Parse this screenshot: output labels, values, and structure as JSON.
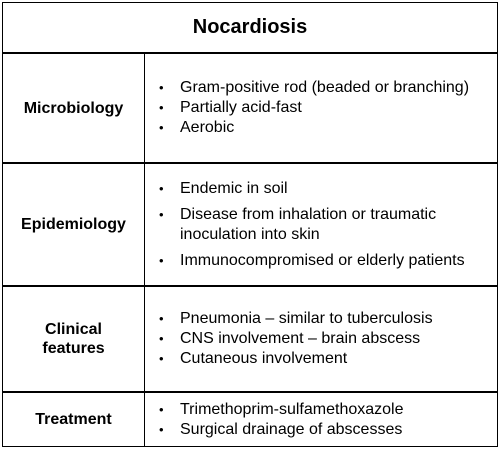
{
  "title": "Nocardiosis",
  "rows": [
    {
      "label": "Microbiology",
      "items": [
        "Gram-positive rod (beaded or branching)",
        "Partially acid-fast",
        "Aerobic"
      ]
    },
    {
      "label": "Epidemiology",
      "items": [
        "Endemic in soil",
        "Disease from inhalation or traumatic inoculation into skin",
        "Immunocompromised or elderly patients"
      ]
    },
    {
      "label": "Clinical features",
      "items": [
        "Pneumonia – similar to tuberculosis",
        "CNS involvement – brain abscess",
        "Cutaneous involvement"
      ]
    },
    {
      "label": "Treatment",
      "items": [
        "Trimethoprim-sulfamethoxazole",
        "Surgical drainage of abscesses"
      ]
    }
  ],
  "bullet_glyph": "•"
}
